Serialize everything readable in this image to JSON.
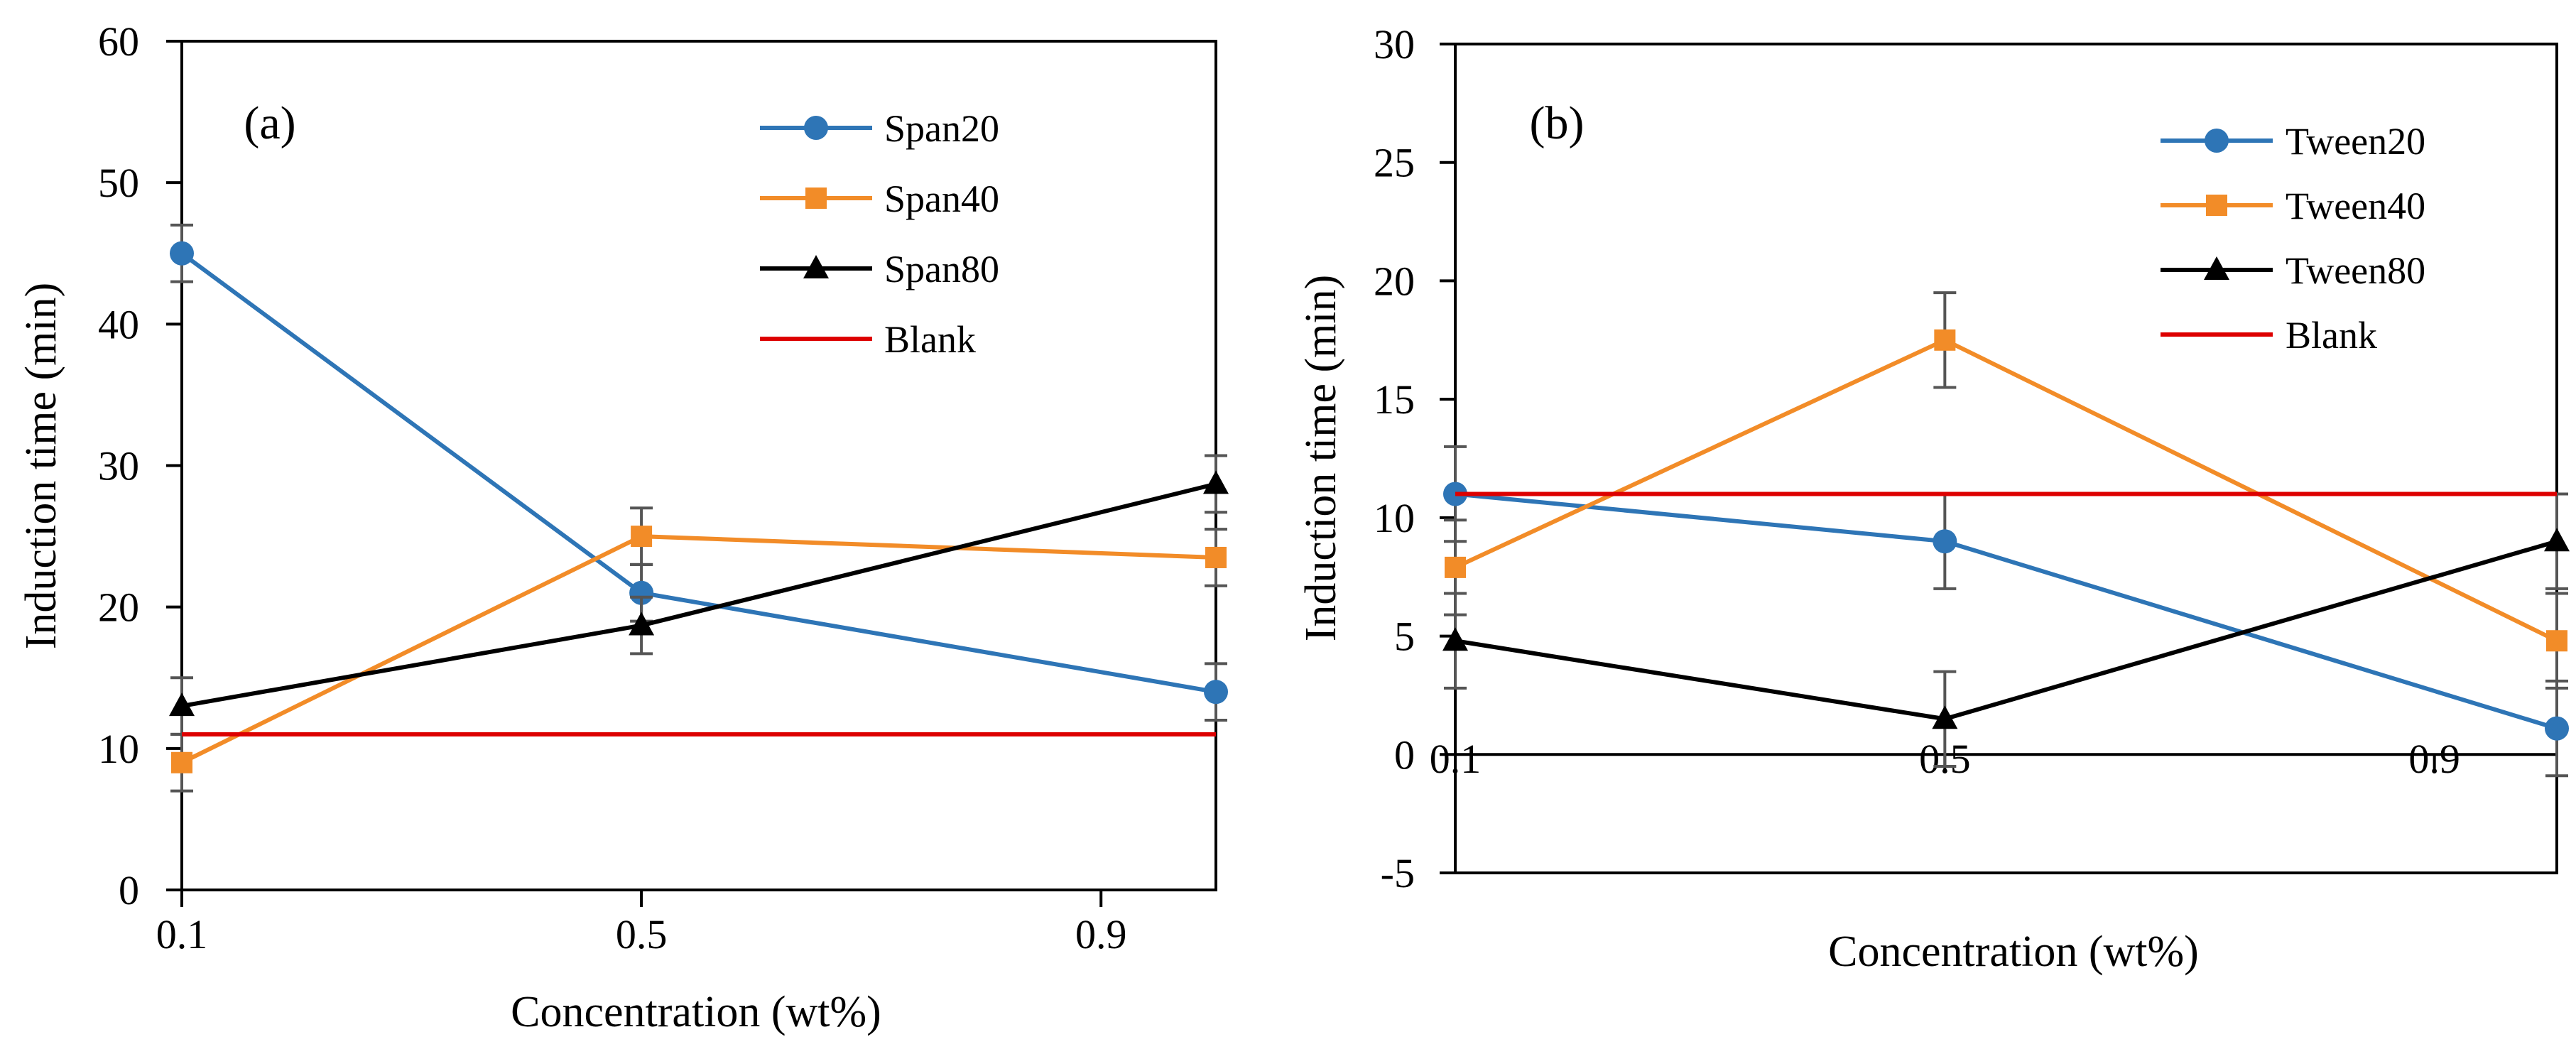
{
  "chart_data": [
    {
      "type": "line",
      "panel_label": "(a)",
      "xlabel": "Concentration (wt%)",
      "ylabel": "Induction time (min)",
      "xlim": [
        0.1,
        1.0
      ],
      "ylim": [
        0,
        60
      ],
      "xticks": [
        0.1,
        0.5,
        0.9
      ],
      "x_tick_labels": [
        "0.1",
        "0.5",
        "0.9"
      ],
      "yticks": [
        0,
        10,
        20,
        30,
        40,
        50,
        60
      ],
      "y_tick_labels": [
        "0",
        "10",
        "20",
        "30",
        "40",
        "50",
        "60"
      ],
      "grid": false,
      "legend_position": "top-right",
      "series": [
        {
          "name": "Span20",
          "color": "#2E75B6",
          "marker": "circle",
          "x": [
            0.1,
            0.5,
            1.0
          ],
          "values": [
            45,
            21,
            14
          ],
          "errors": [
            2,
            2,
            2
          ]
        },
        {
          "name": "Span40",
          "color": "#F28C28",
          "marker": "square",
          "x": [
            0.1,
            0.5,
            1.0
          ],
          "values": [
            9,
            25,
            23.5
          ],
          "errors": [
            2,
            2,
            2
          ]
        },
        {
          "name": "Span80",
          "color": "#000000",
          "marker": "triangle",
          "x": [
            0.1,
            0.5,
            1.0
          ],
          "values": [
            13,
            18.7,
            28.7
          ],
          "errors": [
            2,
            2,
            2
          ]
        },
        {
          "name": "Blank",
          "color": "#DD0000",
          "marker": "none",
          "x": [
            0.1,
            1.0
          ],
          "values": [
            11,
            11
          ],
          "errors": []
        }
      ]
    },
    {
      "type": "line",
      "panel_label": "(b)",
      "xlabel": "Concentration (wt%)",
      "ylabel": "Induction time (min)",
      "xlim": [
        0.1,
        1.0
      ],
      "ylim": [
        -5,
        30
      ],
      "xticks": [
        0.1,
        0.5,
        0.9
      ],
      "x_tick_labels": [
        "0.1",
        "0.5",
        "0.9"
      ],
      "yticks": [
        -5,
        0,
        5,
        10,
        15,
        20,
        25,
        30
      ],
      "y_tick_labels": [
        "-5",
        "0",
        "5",
        "10",
        "15",
        "20",
        "25",
        "30"
      ],
      "grid": false,
      "legend_position": "top-right",
      "series": [
        {
          "name": "Tween20",
          "color": "#2E75B6",
          "marker": "circle",
          "x": [
            0.1,
            0.5,
            1.0
          ],
          "values": [
            11,
            9,
            1.1
          ],
          "errors": [
            2,
            2,
            2
          ]
        },
        {
          "name": "Tween40",
          "color": "#F28C28",
          "marker": "square",
          "x": [
            0.1,
            0.5,
            1.0
          ],
          "values": [
            7.9,
            17.5,
            4.8
          ],
          "errors": [
            2,
            2,
            2
          ]
        },
        {
          "name": "Tween80",
          "color": "#000000",
          "marker": "triangle",
          "x": [
            0.1,
            0.5,
            1.0
          ],
          "values": [
            4.8,
            1.5,
            9
          ],
          "errors": [
            2,
            2,
            2
          ]
        },
        {
          "name": "Blank",
          "color": "#DD0000",
          "marker": "none",
          "x": [
            0.1,
            1.0
          ],
          "values": [
            11,
            11
          ],
          "errors": []
        }
      ]
    }
  ]
}
